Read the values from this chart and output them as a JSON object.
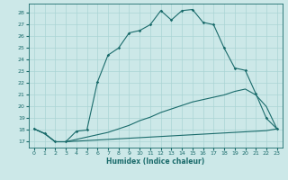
{
  "xlabel": "Humidex (Indice chaleur)",
  "xlim": [
    -0.5,
    23.5
  ],
  "ylim": [
    16.5,
    28.8
  ],
  "yticks": [
    17,
    18,
    19,
    20,
    21,
    22,
    23,
    24,
    25,
    26,
    27,
    28
  ],
  "xticks": [
    0,
    1,
    2,
    3,
    4,
    5,
    6,
    7,
    8,
    9,
    10,
    11,
    12,
    13,
    14,
    15,
    16,
    17,
    18,
    19,
    20,
    21,
    22,
    23
  ],
  "bg_color": "#cce8e8",
  "grid_color": "#aad4d4",
  "line_color": "#1a6b6b",
  "line1": {
    "x": [
      0,
      1,
      2,
      3,
      4,
      5,
      6,
      7,
      8,
      9,
      10,
      11,
      12,
      13,
      14,
      15,
      16,
      17,
      18,
      19,
      20,
      21,
      22,
      23
    ],
    "y": [
      18.1,
      17.7,
      17.0,
      17.0,
      17.9,
      18.0,
      22.1,
      24.4,
      25.0,
      26.3,
      26.5,
      27.0,
      28.2,
      27.4,
      28.2,
      28.3,
      27.2,
      27.0,
      25.0,
      23.3,
      23.1,
      21.1,
      19.0,
      18.1
    ]
  },
  "line2": {
    "x": [
      0,
      1,
      2,
      3,
      4,
      5,
      6,
      7,
      8,
      9,
      10,
      11,
      12,
      13,
      14,
      15,
      16,
      17,
      18,
      19,
      20,
      21,
      22,
      23
    ],
    "y": [
      18.1,
      17.7,
      17.0,
      17.0,
      17.2,
      17.4,
      17.6,
      17.8,
      18.1,
      18.4,
      18.8,
      19.1,
      19.5,
      19.8,
      20.1,
      20.4,
      20.6,
      20.8,
      21.0,
      21.3,
      21.5,
      21.0,
      20.0,
      18.1
    ]
  },
  "line3": {
    "x": [
      0,
      1,
      2,
      3,
      4,
      5,
      6,
      7,
      8,
      9,
      10,
      11,
      12,
      13,
      14,
      15,
      16,
      17,
      18,
      19,
      20,
      21,
      22,
      23
    ],
    "y": [
      18.1,
      17.7,
      17.0,
      17.0,
      17.05,
      17.1,
      17.15,
      17.2,
      17.25,
      17.3,
      17.35,
      17.4,
      17.45,
      17.5,
      17.55,
      17.6,
      17.65,
      17.7,
      17.75,
      17.8,
      17.85,
      17.9,
      17.95,
      18.1
    ]
  }
}
